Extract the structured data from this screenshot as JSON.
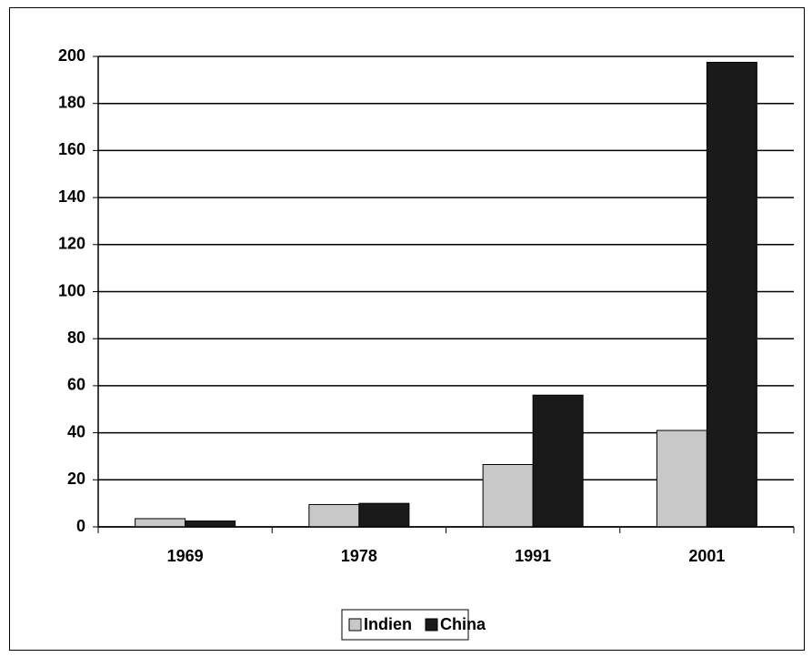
{
  "chart_data": {
    "type": "bar",
    "categories": [
      "1969",
      "1978",
      "1991",
      "2001"
    ],
    "series": [
      {
        "name": "Indien",
        "color": "#c8c8c8",
        "values": [
          3.5,
          9.5,
          26.5,
          41
        ]
      },
      {
        "name": "China",
        "color": "#1a1a1a",
        "values": [
          2.5,
          10,
          56,
          197.5
        ]
      }
    ],
    "ylim": [
      0,
      200
    ],
    "yticks": [
      0,
      20,
      40,
      60,
      80,
      100,
      120,
      140,
      160,
      180,
      200
    ],
    "grid": true,
    "legend": "bottom"
  }
}
